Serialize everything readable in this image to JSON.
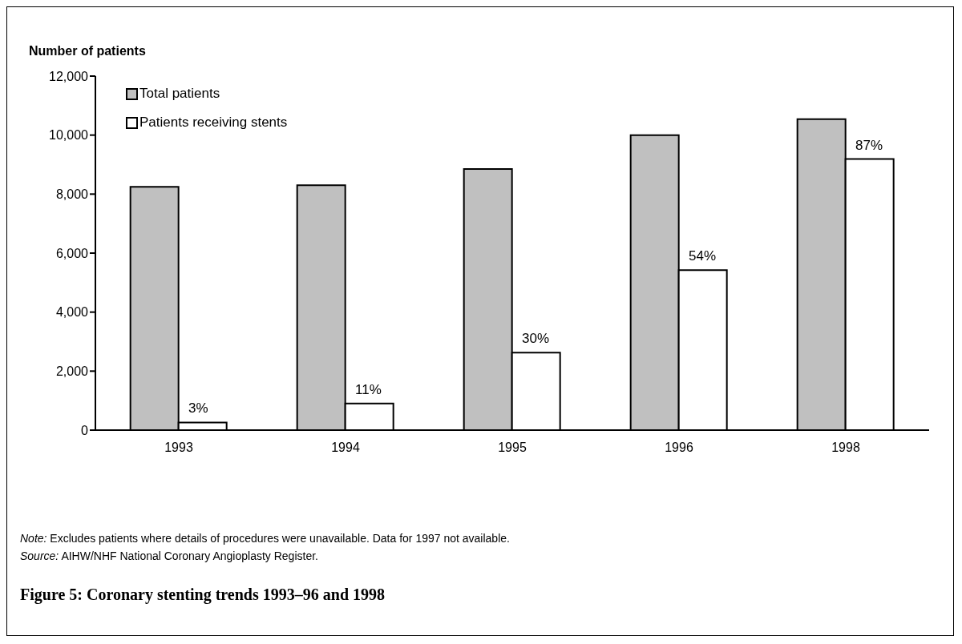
{
  "chart_data": {
    "type": "bar",
    "title": "Figure 5: Coronary stenting trends 1993–96 and 1998",
    "ylabel": "Number of patients",
    "categories": [
      "1993",
      "1994",
      "1995",
      "1996",
      "1998"
    ],
    "series": [
      {
        "name": "Total patients",
        "color": "#c0c0c0",
        "values": [
          8250,
          8300,
          8850,
          10000,
          10540
        ]
      },
      {
        "name": "Patients receiving stents",
        "color": "#ffffff",
        "values": [
          260,
          900,
          2630,
          5420,
          9190
        ]
      }
    ],
    "ylim": [
      0,
      12000
    ],
    "yticks": [
      0,
      {
        "value": 2000,
        "label": "2,000"
      },
      {
        "value": 4000,
        "label": "4,000"
      },
      {
        "value": 6000,
        "label": "6,000"
      },
      {
        "value": 8000,
        "label": "8,000"
      },
      {
        "value": 10000,
        "label": "10,000"
      },
      {
        "value": 12000,
        "label": "12,000"
      }
    ],
    "grid": false,
    "legend": "top left",
    "annotations": [
      {
        "text": "3%",
        "x": "1993",
        "y": 260
      },
      {
        "text": "11%",
        "x": "1994",
        "y": 900
      },
      {
        "text": "30%",
        "x": "1995",
        "y": 2630
      },
      {
        "text": "54%",
        "x": "1996",
        "y": 5420
      },
      {
        "text": "87%",
        "x": "1998",
        "y": 9190
      },
      "Note: Excludes patients where details of procedures were unavailable. Data for 1997 not available.",
      "Source: AIHW/NHF National Coronary Angioplasty Register."
    ]
  }
}
